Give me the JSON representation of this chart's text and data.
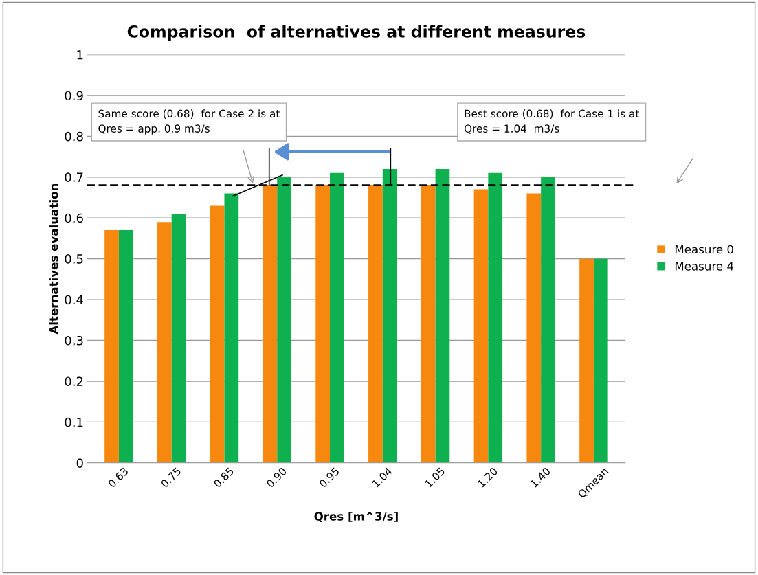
{
  "chart_data": {
    "type": "bar",
    "title": "Comparison  of alternatives at different measures",
    "xlabel": "Qres [m^3/s]",
    "ylabel": "Alternatives evaluation",
    "categories": [
      "0.63",
      "0.75",
      "0.85",
      "0.90",
      "0.95",
      "1.04",
      "1.05",
      "1.20",
      "1.40",
      "Qmean"
    ],
    "series": [
      {
        "name": "Measure 0",
        "color": "#f7880f",
        "values": [
          0.57,
          0.59,
          0.63,
          0.68,
          0.68,
          0.68,
          0.68,
          0.67,
          0.66,
          0.5
        ]
      },
      {
        "name": "Measure 4",
        "color": "#0fb050",
        "values": [
          0.57,
          0.61,
          0.66,
          0.7,
          0.71,
          0.72,
          0.72,
          0.71,
          0.7,
          0.5
        ]
      }
    ],
    "ylim": [
      0,
      1
    ],
    "yticks": [
      0,
      0.1,
      0.2,
      0.3,
      0.4,
      0.5,
      0.6,
      0.7,
      0.8,
      0.9,
      1
    ],
    "ref_lines": [
      {
        "axis": "y",
        "value": 0.68,
        "color": "#000000",
        "line_style": "dashed"
      }
    ],
    "annotations": [
      "Same score (0.68)  for Case 2 is at\nQres = app. 0.9 m3/s",
      "Best score (0.68)  for Case 1 is at\nQres = 1.04  m3/s"
    ],
    "grid": "y",
    "legend": "right"
  }
}
